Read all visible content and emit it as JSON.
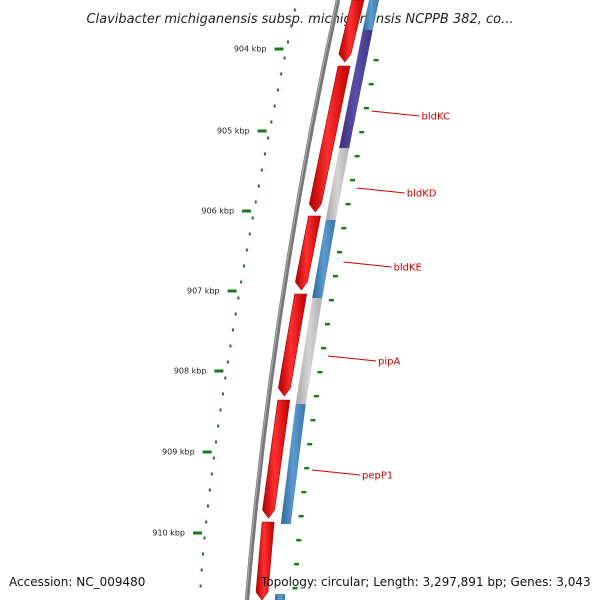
{
  "title": "Clavibacter michiganensis subsp. michiganensis NCPPB 382, co...",
  "footer": {
    "accession": "Accession: NC_009480",
    "summary": "Topology: circular; Length: 3,297,891 bp; Genes: 3,043"
  },
  "ticks": [
    "904 kbp",
    "905 kbp",
    "906 kbp",
    "907 kbp",
    "908 kbp",
    "909 kbp",
    "910 kbp"
  ],
  "genes": [
    "bldKC",
    "bldKD",
    "bldKE",
    "pipA",
    "pepP1"
  ],
  "colors": {
    "backbone": "#777777",
    "cds": "#ff0000",
    "feature_blue": "#4682b4",
    "feature_gray": "#bbbbbb",
    "feature_purple": "#483d8b",
    "ticks": "#1a7a1a",
    "label": "#cc0000"
  }
}
